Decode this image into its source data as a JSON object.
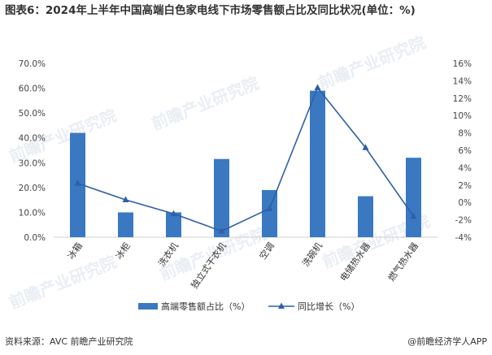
{
  "title": "图表6：2024年上半年中国高端白色家电线下市场零售额占比及同比状况(单位：%)",
  "source": "资料来源：AVC 前瞻产业研究院",
  "brand": "@前瞻经济学人APP",
  "watermark": "前瞻产业研究院",
  "colors": {
    "bar": "#3a78c2",
    "line": "#2e5fa8",
    "axis_text": "#444444"
  },
  "chart_data": {
    "type": "bar",
    "categories": [
      "冰箱",
      "冰柜",
      "洗衣机",
      "独立式干衣机",
      "空调",
      "洗碗机",
      "电储热水器",
      "燃气热水器"
    ],
    "series": [
      {
        "name": "高端零售额占比（%）",
        "type": "bar",
        "axis": "left",
        "values": [
          42.0,
          10.0,
          10.0,
          31.5,
          19.0,
          59.0,
          16.5,
          32.0
        ]
      },
      {
        "name": "同比增长（%）",
        "type": "line",
        "axis": "right",
        "values": [
          2.2,
          0.3,
          -1.3,
          -3.3,
          -0.7,
          13.2,
          6.3,
          -1.6
        ]
      }
    ],
    "left_axis": {
      "min": 0,
      "max": 70,
      "step": 10,
      "tick_labels": [
        "0.0%",
        "10.0%",
        "20.0%",
        "30.0%",
        "40.0%",
        "50.0%",
        "60.0%",
        "70.0%"
      ]
    },
    "right_axis": {
      "min": -4,
      "max": 16,
      "step": 2,
      "tick_labels": [
        "-4%",
        "-2%",
        "0%",
        "2%",
        "4%",
        "6%",
        "8%",
        "10%",
        "12%",
        "14%",
        "16%"
      ]
    },
    "legend_position": "bottom",
    "grid": false
  }
}
